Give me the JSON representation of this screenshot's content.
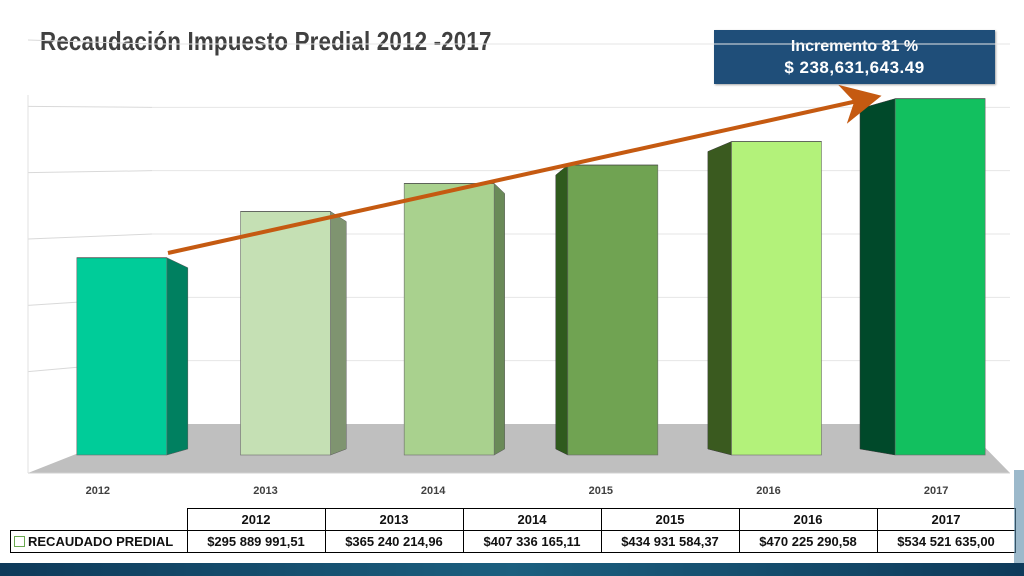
{
  "title": "Recaudación Impuesto Predial 2012 -2017",
  "callout": {
    "line1": "Incremento 81 %",
    "line2": "$  238,631,643.49"
  },
  "colors": {
    "arrow": "#c55a11",
    "callout_bg": "#1f4e79",
    "floor": "#bfbfbf"
  },
  "chart_data": {
    "type": "bar",
    "categories": [
      "2012",
      "2013",
      "2014",
      "2015",
      "2016",
      "2017"
    ],
    "series": [
      {
        "name": "RECAUDADO PREDIAL",
        "values": [
          295889991.51,
          365240214.96,
          407336165.11,
          434931584.37,
          470225290.58,
          534521635.0
        ]
      }
    ],
    "bar_colors": [
      {
        "front": "#00cc99",
        "side": "#008060"
      },
      {
        "front": "#c5e0b4",
        "side": "#7f9470"
      },
      {
        "front": "#a9d18e",
        "side": "#6a8a58"
      },
      {
        "front": "#70a352",
        "side": "#2f5a1d"
      },
      {
        "front": "#b3f27a",
        "side": "#3a5a1f"
      },
      {
        "front": "#12c05f",
        "side": "#00492a"
      }
    ],
    "grid": true,
    "legend": "data-table",
    "ylim": [
      0,
      600000000
    ]
  },
  "table": {
    "years": [
      "2012",
      "2013",
      "2014",
      "2015",
      "2016",
      "2017"
    ],
    "row_label": "RECAUDADO PREDIAL",
    "values": [
      "$295 889 991,51",
      "$365 240 214,96",
      "$407 336 165,11",
      "$434 931 584,37",
      "$470 225 290,58",
      "$534 521 635,00"
    ]
  }
}
